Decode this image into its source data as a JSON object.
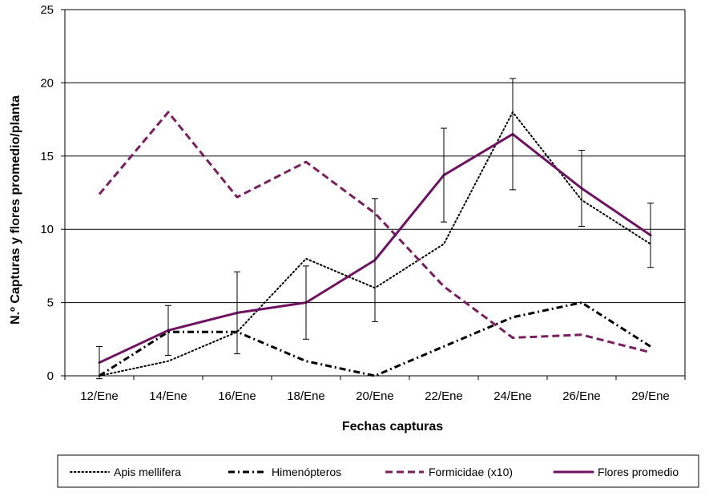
{
  "chart_data": {
    "type": "line",
    "xlabel": "Fechas capturas",
    "ylabel": "N.º Capturas y flores promedio/planta",
    "ylim": [
      0,
      25
    ],
    "yticks": [
      0,
      5,
      10,
      15,
      20,
      25
    ],
    "grid": "horizontal",
    "legend_placement": "bottom",
    "categories": [
      "12/Ene",
      "14/Ene",
      "16/Ene",
      "18/Ene",
      "20/Ene",
      "22/Ene",
      "24/Ene",
      "26/Ene",
      "29/Ene"
    ],
    "series": [
      {
        "name": "Apis mellifera",
        "style": "dotted",
        "color": "#000000",
        "values": [
          0,
          1,
          3,
          8,
          6,
          9,
          18,
          12,
          9
        ]
      },
      {
        "name": "Himenópteros",
        "style": "dash-dot",
        "color": "#000000",
        "values": [
          0,
          3,
          3,
          1,
          0,
          2,
          4,
          5,
          2
        ]
      },
      {
        "name": "Formicidae (x10)",
        "style": "dashed",
        "color": "#7a1e5e",
        "values": [
          12.4,
          18,
          12.2,
          14.6,
          11.1,
          6.1,
          2.6,
          2.8,
          1.6
        ]
      },
      {
        "name": "Flores promedio",
        "style": "solid",
        "color": "#6e1261",
        "values": [
          0.9,
          3.1,
          4.3,
          5,
          7.9,
          13.7,
          16.5,
          12.8,
          9.6
        ],
        "error_low": [
          -0.2,
          1.4,
          1.5,
          2.5,
          3.7,
          10.5,
          12.7,
          10.2,
          7.4
        ],
        "error_high": [
          2,
          4.8,
          7.1,
          7.5,
          12.1,
          16.9,
          20.3,
          15.4,
          11.8
        ]
      }
    ]
  }
}
